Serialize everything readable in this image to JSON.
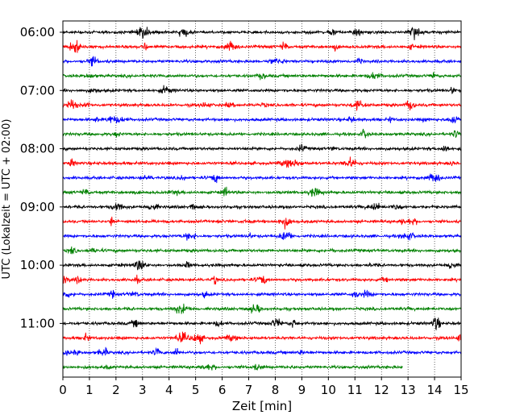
{
  "chart_data": {
    "type": "line",
    "title": "",
    "xlabel": "Zeit  [min]",
    "ylabel": "UTC (Lokalzeit = UTC + 02:00)",
    "xlim": [
      0,
      15
    ],
    "x_ticks": [
      0,
      1,
      2,
      3,
      4,
      5,
      6,
      7,
      8,
      9,
      10,
      11,
      12,
      13,
      14,
      15
    ],
    "y_tick_labels": [
      "06:00",
      "07:00",
      "08:00",
      "09:00",
      "10:00",
      "11:00"
    ],
    "grid": "vertical dotted lines at each minute",
    "trace_colors": [
      "#000000",
      "#ff0000",
      "#0000ff",
      "#008000"
    ],
    "rows": [
      {
        "start": "06:00",
        "end_min": 15
      },
      {
        "start": "06:15",
        "end_min": 15
      },
      {
        "start": "06:30",
        "end_min": 15
      },
      {
        "start": "06:45",
        "end_min": 15
      },
      {
        "start": "07:00",
        "end_min": 15
      },
      {
        "start": "07:15",
        "end_min": 15
      },
      {
        "start": "07:30",
        "end_min": 15
      },
      {
        "start": "07:45",
        "end_min": 15
      },
      {
        "start": "08:00",
        "end_min": 15
      },
      {
        "start": "08:15",
        "end_min": 15
      },
      {
        "start": "08:30",
        "end_min": 15
      },
      {
        "start": "08:45",
        "end_min": 15
      },
      {
        "start": "09:00",
        "end_min": 15
      },
      {
        "start": "09:15",
        "end_min": 15
      },
      {
        "start": "09:30",
        "end_min": 15
      },
      {
        "start": "09:45",
        "end_min": 15
      },
      {
        "start": "10:00",
        "end_min": 15
      },
      {
        "start": "10:15",
        "end_min": 15
      },
      {
        "start": "10:30",
        "end_min": 15
      },
      {
        "start": "10:45",
        "end_min": 15
      },
      {
        "start": "11:00",
        "end_min": 15
      },
      {
        "start": "11:15",
        "end_min": 15
      },
      {
        "start": "11:30",
        "end_min": 15
      },
      {
        "start": "11:45",
        "end_min": 12.8
      }
    ]
  }
}
